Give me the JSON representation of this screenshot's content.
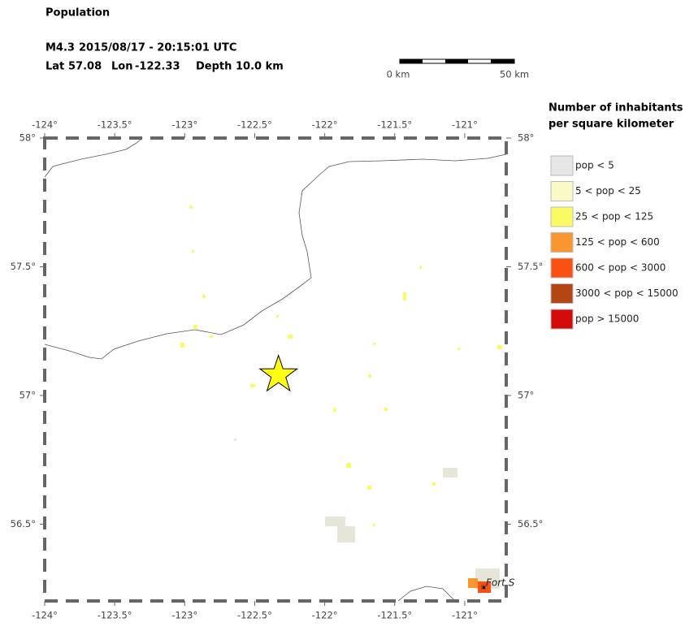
{
  "header": {
    "title": "Population",
    "event": {
      "magnitude": "M4.3",
      "time": "2015/08/17 - 20:15:01 UTC",
      "lat_label": "Lat",
      "lat": 57.08,
      "lon_label": "Lon",
      "lon": -122.33,
      "depth_label": "Depth",
      "depth": "10.0 km"
    }
  },
  "scale_bar": {
    "start": "0 km",
    "end": "50 km"
  },
  "map": {
    "lon_ticks": [
      {
        "value": -124,
        "label": "-124°"
      },
      {
        "value": -123.5,
        "label": "-123.5°"
      },
      {
        "value": -123,
        "label": "-123°"
      },
      {
        "value": -122.5,
        "label": "-122.5°"
      },
      {
        "value": -122,
        "label": "-122°"
      },
      {
        "value": -121.5,
        "label": "-121.5°"
      },
      {
        "value": -121,
        "label": "-121°"
      }
    ],
    "lat_ticks": [
      {
        "value": 58,
        "label": "58°"
      },
      {
        "value": 57.5,
        "label": "57.5°"
      },
      {
        "value": 57,
        "label": "57°"
      },
      {
        "value": 56.5,
        "label": "56.5°"
      }
    ],
    "place": "Fort S"
  },
  "legend": {
    "title": [
      "Number of inhabitants",
      "per square kilometer"
    ],
    "items": [
      {
        "label": "pop < 5",
        "color": "#e6e6e6"
      },
      {
        "label": "5 < pop < 25",
        "color": "#fafac8"
      },
      {
        "label": "25 < pop < 125",
        "color": "#fafa64"
      },
      {
        "label": "125 < pop < 600",
        "color": "#fa9632"
      },
      {
        "label": "600 < pop < 3000",
        "color": "#fa5014"
      },
      {
        "label": "3000 < pop < 15000",
        "color": "#b44614"
      },
      {
        "label": "pop > 15000",
        "color": "#d20a0a"
      }
    ]
  }
}
